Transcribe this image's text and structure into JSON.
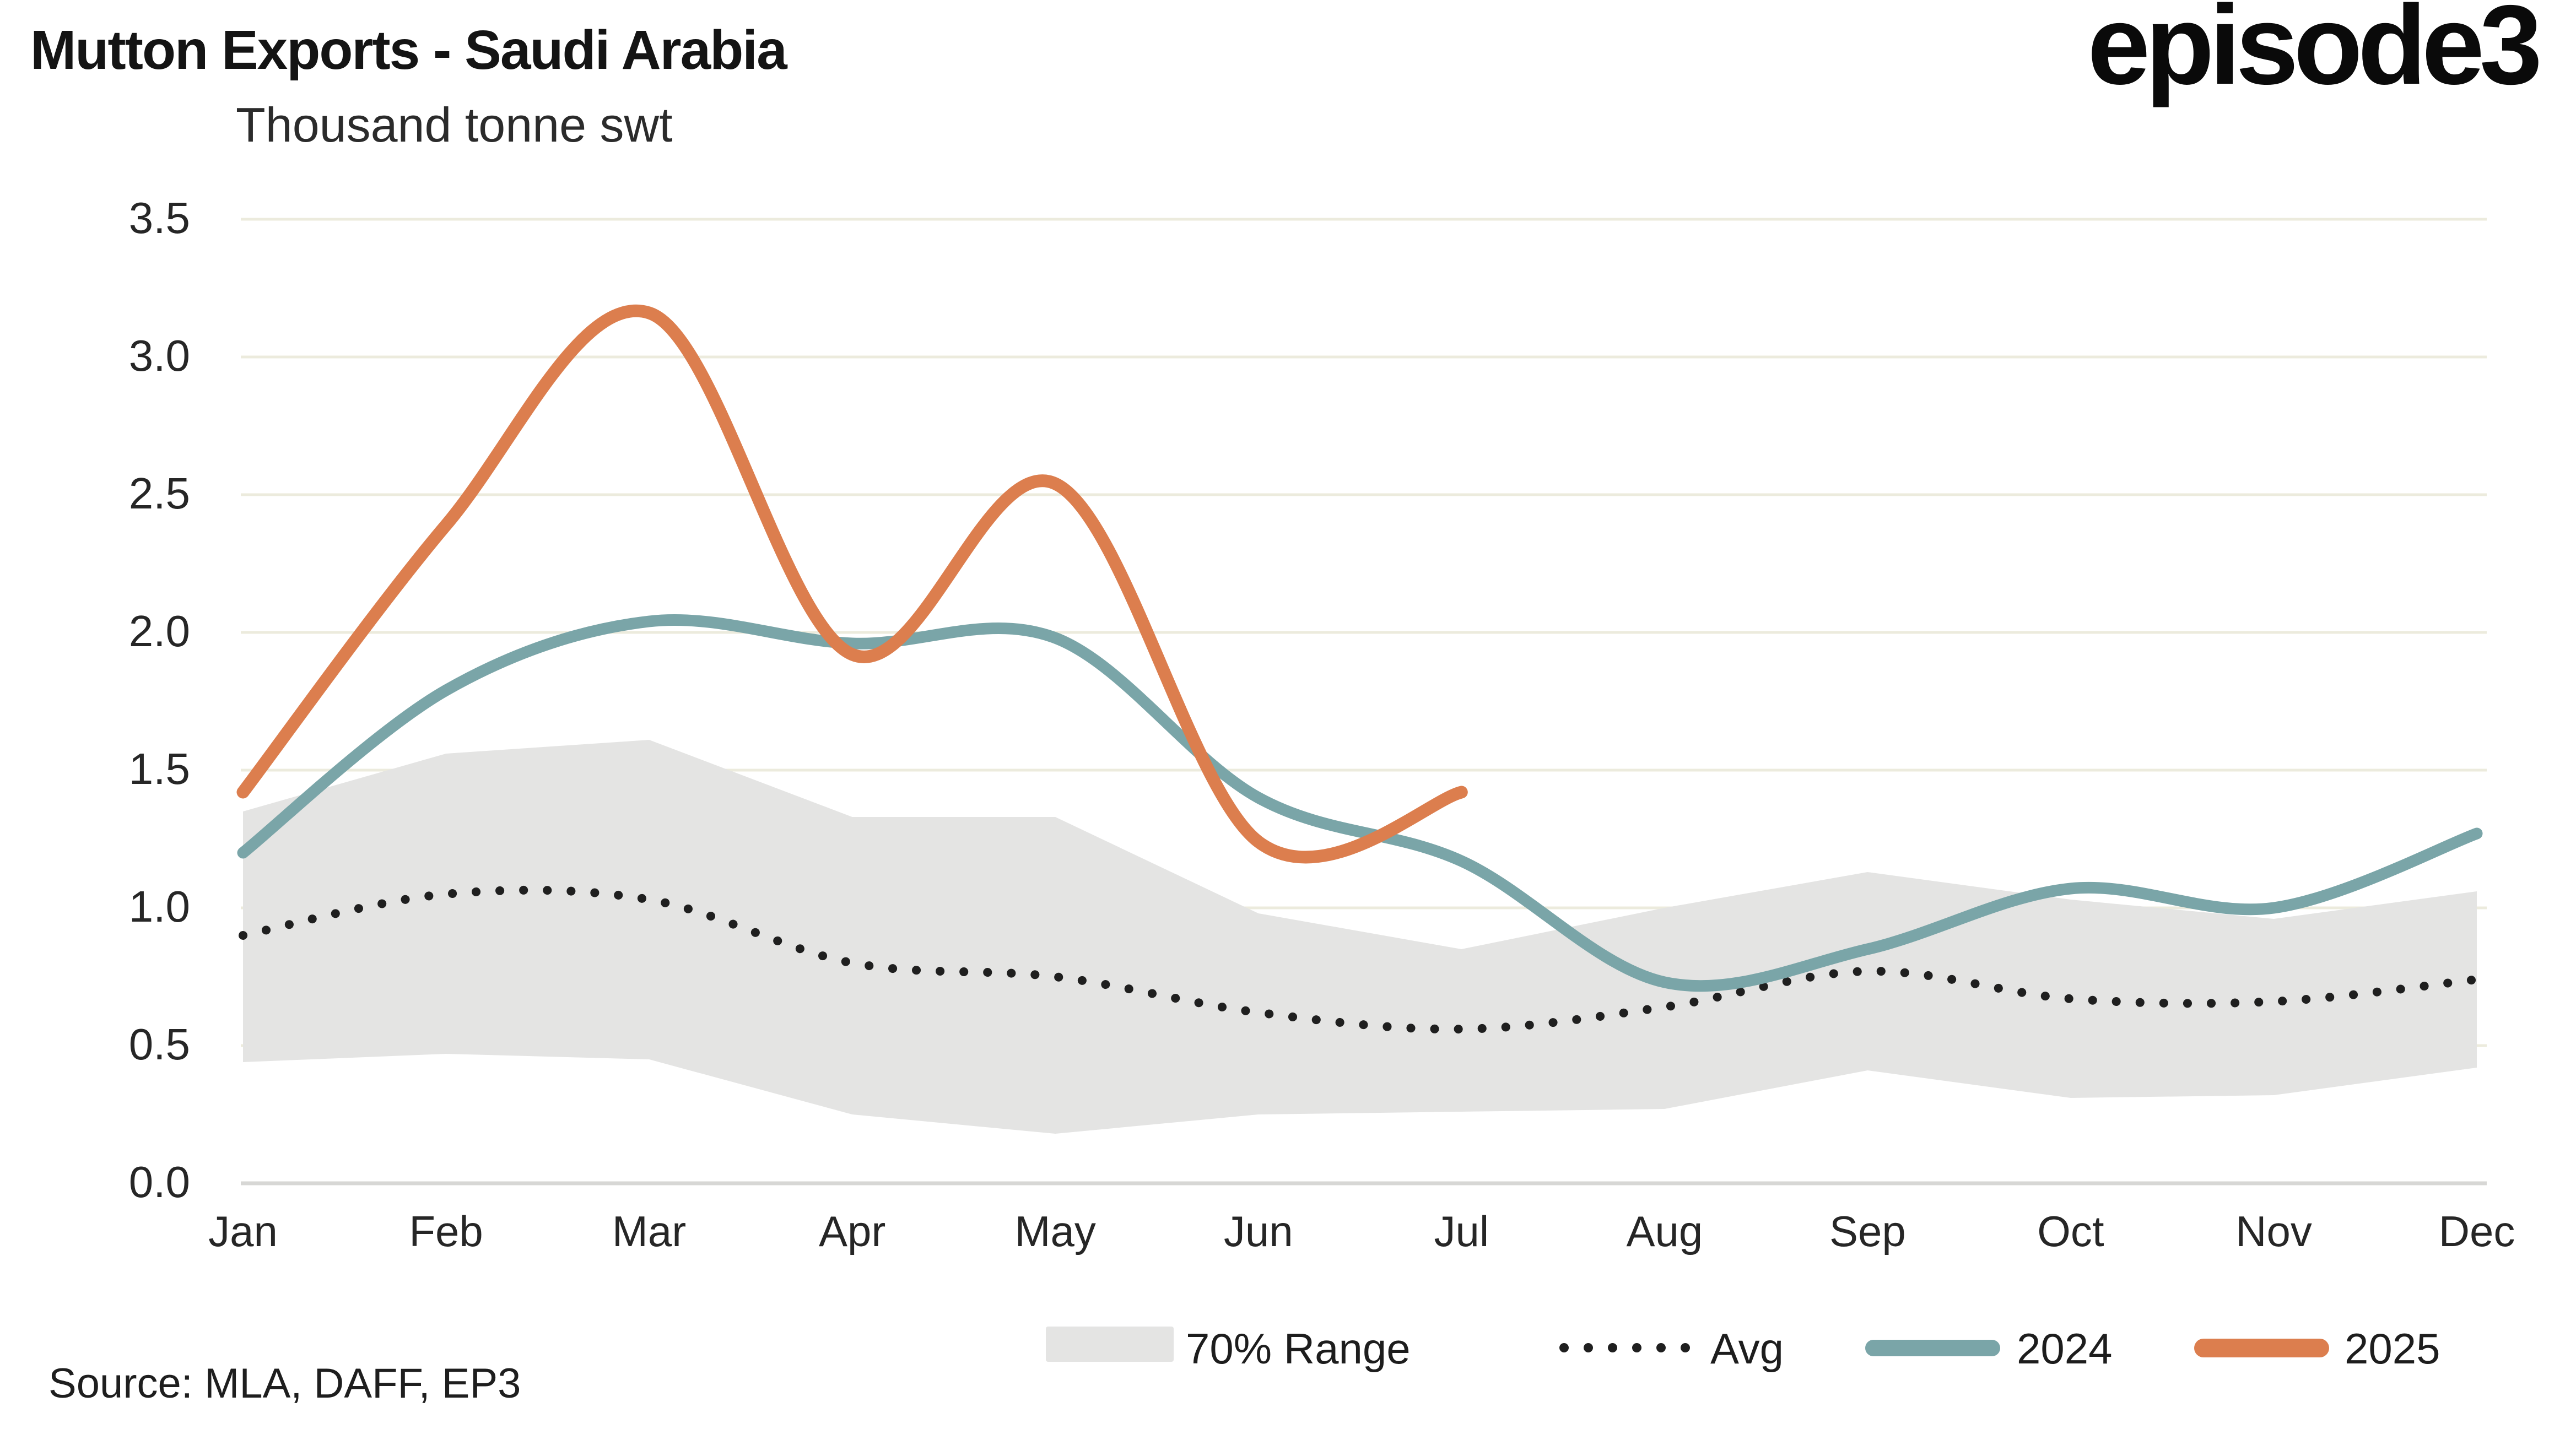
{
  "header": {
    "title": "Mutton Exports - Saudi Arabia",
    "subtitle": "Thousand tonne swt",
    "logo": "episode3"
  },
  "footer": {
    "source": "Source: MLA, DAFF, EP3"
  },
  "colors": {
    "background": "#ffffff",
    "gridline": "#ecebdd",
    "baseline": "#d7d7d5",
    "band": "#e4e4e3",
    "avg": "#1f1f1f",
    "y2024": "#7aa5a8",
    "y2025": "#dc7e4e",
    "text": "#262626"
  },
  "chart_data": {
    "type": "line",
    "title": "Mutton Exports - Saudi Arabia",
    "ylabel": "Thousand tonne swt",
    "xlabel": "",
    "categories": [
      "Jan",
      "Feb",
      "Mar",
      "Apr",
      "May",
      "Jun",
      "Jul",
      "Aug",
      "Sep",
      "Oct",
      "Nov",
      "Dec"
    ],
    "ylim": [
      0,
      3.5
    ],
    "ytick_labels": [
      "3.5",
      "3.0",
      "2.5",
      "2.0",
      "1.5",
      "1.0",
      "0.5",
      "0.0"
    ],
    "ytick_values": [
      3.5,
      3.0,
      2.5,
      2.0,
      1.5,
      1.0,
      0.5,
      0.0
    ],
    "grid": "horizontal",
    "legend_position": "bottom",
    "series": [
      {
        "name": "70% Range",
        "type": "area-band",
        "color": "#e4e4e3",
        "high": [
          1.35,
          1.56,
          1.61,
          1.33,
          1.33,
          0.98,
          0.85,
          1.0,
          1.13,
          1.03,
          0.96,
          1.06
        ],
        "low": [
          0.44,
          0.47,
          0.45,
          0.25,
          0.18,
          0.25,
          0.26,
          0.27,
          0.41,
          0.31,
          0.32,
          0.42
        ]
      },
      {
        "name": "Avg",
        "type": "line-dotted",
        "color": "#1f1f1f",
        "values": [
          0.9,
          1.05,
          1.03,
          0.8,
          0.75,
          0.62,
          0.56,
          0.64,
          0.77,
          0.67,
          0.66,
          0.74
        ]
      },
      {
        "name": "2024",
        "type": "line",
        "color": "#7aa5a8",
        "values": [
          1.2,
          1.79,
          2.04,
          1.96,
          1.98,
          1.4,
          1.17,
          0.73,
          0.85,
          1.07,
          1.0,
          1.27
        ]
      },
      {
        "name": "2025",
        "type": "line",
        "color": "#dc7e4e",
        "values": [
          1.42,
          2.39,
          3.16,
          1.92,
          2.54,
          1.24,
          1.42
        ]
      }
    ]
  }
}
